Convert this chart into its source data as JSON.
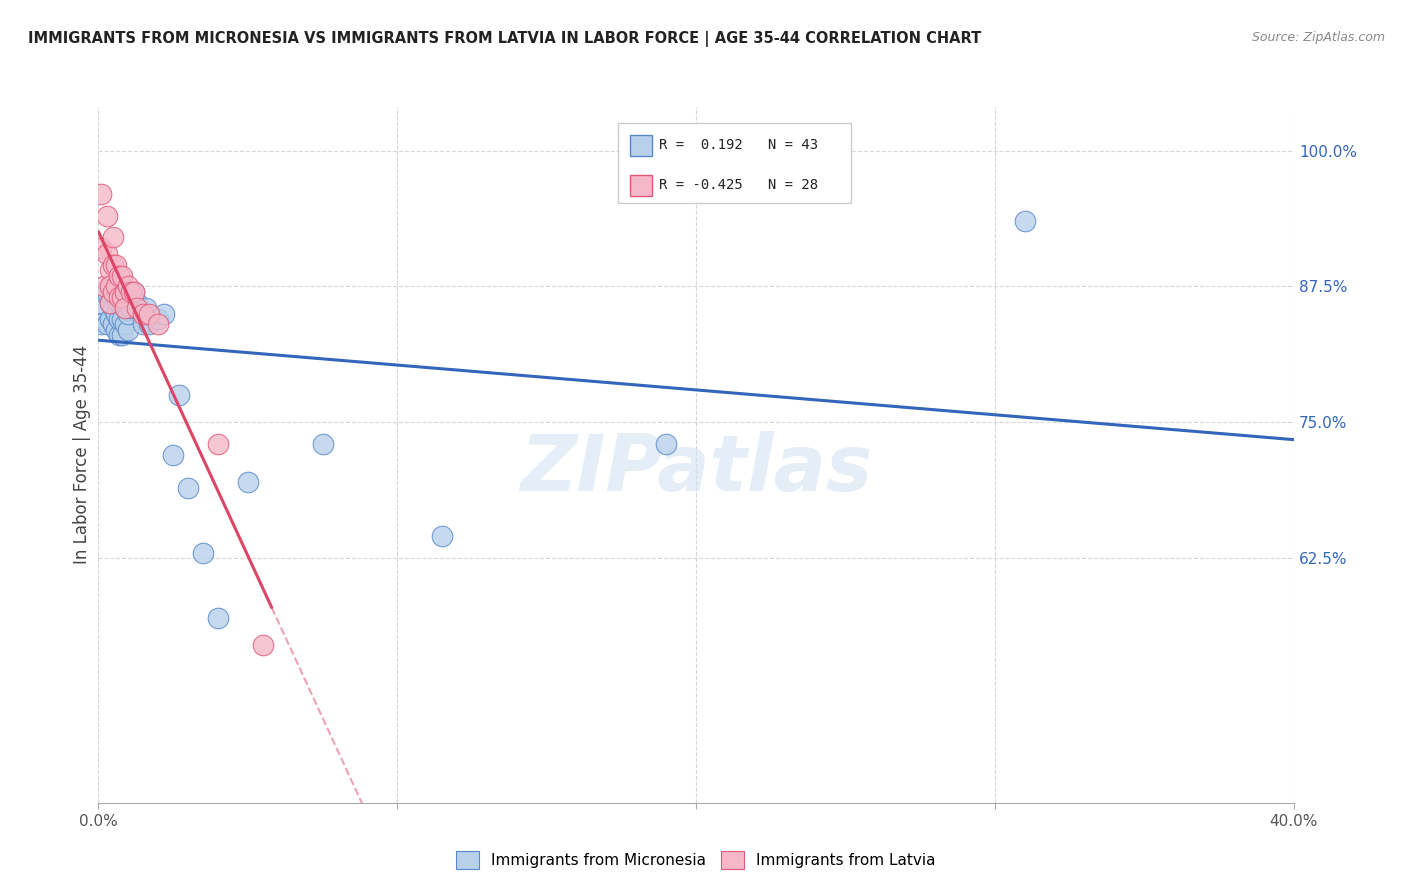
{
  "title": "IMMIGRANTS FROM MICRONESIA VS IMMIGRANTS FROM LATVIA IN LABOR FORCE | AGE 35-44 CORRELATION CHART",
  "source": "Source: ZipAtlas.com",
  "ylabel": "In Labor Force | Age 35-44",
  "xlim": [
    0.0,
    0.4
  ],
  "ylim": [
    0.4,
    1.04
  ],
  "x_tick_positions": [
    0.0,
    0.1,
    0.2,
    0.3,
    0.4
  ],
  "x_tick_labels": [
    "0.0%",
    "",
    "",
    "",
    "40.0%"
  ],
  "y_tick_positions": [
    0.625,
    0.75,
    0.875,
    1.0
  ],
  "y_tick_labels": [
    "62.5%",
    "75.0%",
    "87.5%",
    "100.0%"
  ],
  "micronesia_R": 0.192,
  "micronesia_N": 43,
  "latvia_R": -0.425,
  "latvia_N": 28,
  "micronesia_color": "#b8d0ea",
  "latvia_color": "#f4b8c8",
  "micronesia_edge_color": "#5588cc",
  "latvia_edge_color": "#e05878",
  "micronesia_line_color": "#3366bb",
  "latvia_line_color": "#dd4466",
  "watermark_text": "ZIPatlas",
  "micronesia_x": [
    0.001,
    0.001,
    0.002,
    0.003,
    0.003,
    0.004,
    0.004,
    0.004,
    0.005,
    0.005,
    0.005,
    0.006,
    0.006,
    0.006,
    0.007,
    0.007,
    0.007,
    0.008,
    0.008,
    0.008,
    0.009,
    0.009,
    0.01,
    0.01,
    0.01,
    0.011,
    0.012,
    0.013,
    0.015,
    0.016,
    0.017,
    0.02,
    0.022,
    0.025,
    0.027,
    0.03,
    0.035,
    0.04,
    0.05,
    0.075,
    0.115,
    0.19,
    0.31
  ],
  "micronesia_y": [
    0.84,
    0.86,
    0.87,
    0.84,
    0.87,
    0.845,
    0.86,
    0.875,
    0.84,
    0.855,
    0.875,
    0.835,
    0.85,
    0.865,
    0.83,
    0.845,
    0.86,
    0.83,
    0.845,
    0.86,
    0.84,
    0.855,
    0.835,
    0.85,
    0.865,
    0.855,
    0.87,
    0.86,
    0.84,
    0.855,
    0.84,
    0.845,
    0.85,
    0.72,
    0.775,
    0.69,
    0.63,
    0.57,
    0.695,
    0.73,
    0.645,
    0.73,
    0.935
  ],
  "latvia_x": [
    0.001,
    0.001,
    0.002,
    0.003,
    0.003,
    0.004,
    0.004,
    0.004,
    0.005,
    0.005,
    0.005,
    0.006,
    0.006,
    0.007,
    0.007,
    0.008,
    0.008,
    0.009,
    0.009,
    0.01,
    0.011,
    0.012,
    0.013,
    0.015,
    0.017,
    0.02,
    0.04,
    0.055
  ],
  "latvia_y": [
    0.96,
    0.91,
    0.875,
    0.94,
    0.905,
    0.89,
    0.875,
    0.86,
    0.92,
    0.895,
    0.87,
    0.895,
    0.875,
    0.885,
    0.865,
    0.885,
    0.865,
    0.87,
    0.855,
    0.875,
    0.87,
    0.87,
    0.855,
    0.85,
    0.85,
    0.84,
    0.73,
    0.545
  ]
}
